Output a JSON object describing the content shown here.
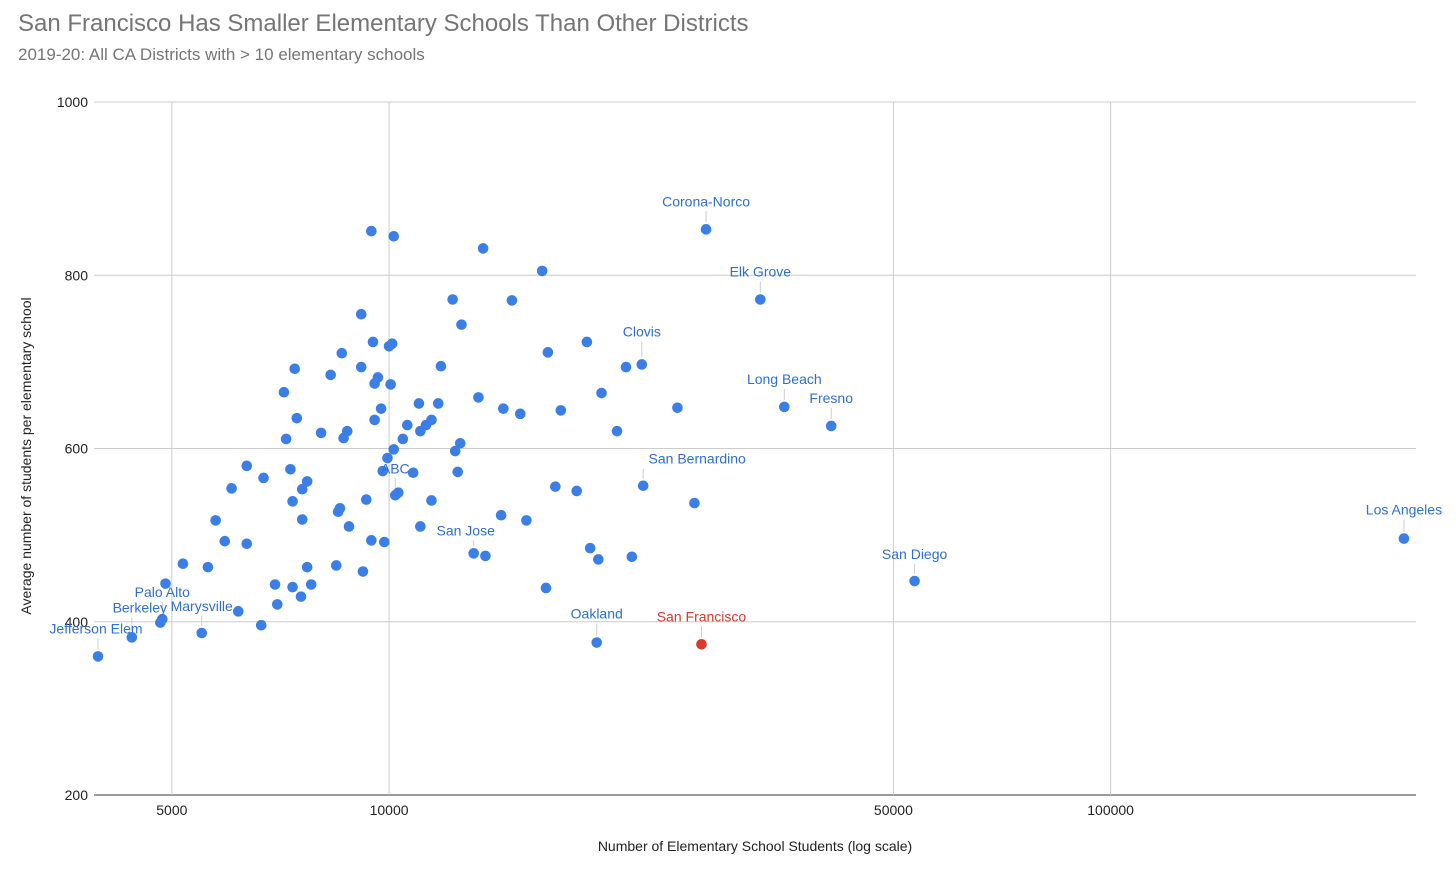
{
  "chart_data": {
    "type": "scatter",
    "title": "San Francisco Has Smaller Elementary Schools Than Other Districts",
    "subtitle": "2019-20: All CA Districts with > 10 elementary schools",
    "xlabel": "Number of Elementary School Students (log scale)",
    "ylabel": "Average number of students per elementary school",
    "x_scale": "log",
    "xlim": [
      3900,
      265000
    ],
    "ylim": [
      200,
      1000
    ],
    "x_ticks": [
      5000,
      10000,
      50000,
      100000
    ],
    "x_tick_labels": [
      "5000",
      "10000",
      "50000",
      "100000"
    ],
    "y_ticks": [
      200,
      400,
      600,
      800,
      1000
    ],
    "y_tick_labels": [
      "200",
      "400",
      "600",
      "800",
      "1000"
    ],
    "x_gridlines": [
      5000,
      10000,
      50000,
      100000
    ],
    "grid": true,
    "colors": {
      "default": "#3b7ee6",
      "highlight": "#db3b2e",
      "label": "#2f6fd0",
      "highlight_label": "#d33a2c",
      "grid": "#cccccc",
      "title": "#757575"
    },
    "points": [
      {
        "x": 255000,
        "y": 496,
        "label": "Los Angeles"
      },
      {
        "x": 53500,
        "y": 447,
        "label": "San Diego"
      },
      {
        "x": 27500,
        "y": 853,
        "label": "Corona-Norco"
      },
      {
        "x": 32700,
        "y": 772,
        "label": "Elk Grove"
      },
      {
        "x": 35300,
        "y": 648,
        "label": "Long Beach"
      },
      {
        "x": 41000,
        "y": 626,
        "label": "Fresno"
      },
      {
        "x": 22400,
        "y": 697,
        "label": "Clovis"
      },
      {
        "x": 22500,
        "y": 557,
        "label": "San Bernardino"
      },
      {
        "x": 27100,
        "y": 374,
        "label": "San Francisco",
        "highlight": true
      },
      {
        "x": 19400,
        "y": 376,
        "label": "Oakland"
      },
      {
        "x": 13100,
        "y": 479,
        "label": "San Jose"
      },
      {
        "x": 10200,
        "y": 546,
        "label": "ABC"
      },
      {
        "x": 5500,
        "y": 387,
        "label": "Marysville"
      },
      {
        "x": 4850,
        "y": 403,
        "label": "Palo Alto"
      },
      {
        "x": 4400,
        "y": 382,
        "label": "Berkeley"
      },
      {
        "x": 3950,
        "y": 360,
        "label": "Jefferson Elem"
      },
      {
        "x": 9450,
        "y": 851
      },
      {
        "x": 10150,
        "y": 845
      },
      {
        "x": 13500,
        "y": 831
      },
      {
        "x": 16300,
        "y": 805
      },
      {
        "x": 12250,
        "y": 772
      },
      {
        "x": 14800,
        "y": 771
      },
      {
        "x": 9150,
        "y": 755
      },
      {
        "x": 12600,
        "y": 743
      },
      {
        "x": 10100,
        "y": 721
      },
      {
        "x": 10000,
        "y": 718
      },
      {
        "x": 9500,
        "y": 723
      },
      {
        "x": 18800,
        "y": 723
      },
      {
        "x": 8600,
        "y": 710
      },
      {
        "x": 16600,
        "y": 711
      },
      {
        "x": 7400,
        "y": 692
      },
      {
        "x": 9150,
        "y": 694
      },
      {
        "x": 11800,
        "y": 695
      },
      {
        "x": 21300,
        "y": 694
      },
      {
        "x": 8300,
        "y": 685
      },
      {
        "x": 9650,
        "y": 682
      },
      {
        "x": 9550,
        "y": 675
      },
      {
        "x": 10050,
        "y": 674
      },
      {
        "x": 7150,
        "y": 665
      },
      {
        "x": 19700,
        "y": 664
      },
      {
        "x": 13300,
        "y": 659
      },
      {
        "x": 11000,
        "y": 652
      },
      {
        "x": 11700,
        "y": 652
      },
      {
        "x": 9750,
        "y": 646
      },
      {
        "x": 14400,
        "y": 646
      },
      {
        "x": 25100,
        "y": 647
      },
      {
        "x": 15200,
        "y": 640
      },
      {
        "x": 17300,
        "y": 644
      },
      {
        "x": 7450,
        "y": 635
      },
      {
        "x": 9550,
        "y": 633
      },
      {
        "x": 11450,
        "y": 633
      },
      {
        "x": 11250,
        "y": 627
      },
      {
        "x": 10600,
        "y": 627
      },
      {
        "x": 11050,
        "y": 620
      },
      {
        "x": 8750,
        "y": 620
      },
      {
        "x": 8050,
        "y": 618
      },
      {
        "x": 20700,
        "y": 620
      },
      {
        "x": 8650,
        "y": 612
      },
      {
        "x": 7200,
        "y": 611
      },
      {
        "x": 10450,
        "y": 611
      },
      {
        "x": 12550,
        "y": 606
      },
      {
        "x": 10150,
        "y": 599
      },
      {
        "x": 12350,
        "y": 597
      },
      {
        "x": 9950,
        "y": 589
      },
      {
        "x": 6350,
        "y": 580
      },
      {
        "x": 7300,
        "y": 576
      },
      {
        "x": 9800,
        "y": 574
      },
      {
        "x": 10800,
        "y": 572
      },
      {
        "x": 12450,
        "y": 573
      },
      {
        "x": 6700,
        "y": 566
      },
      {
        "x": 7700,
        "y": 562
      },
      {
        "x": 7580,
        "y": 553
      },
      {
        "x": 6050,
        "y": 554
      },
      {
        "x": 17000,
        "y": 556
      },
      {
        "x": 18200,
        "y": 551
      },
      {
        "x": 10300,
        "y": 549
      },
      {
        "x": 7350,
        "y": 539
      },
      {
        "x": 9300,
        "y": 541
      },
      {
        "x": 11450,
        "y": 540
      },
      {
        "x": 26500,
        "y": 537
      },
      {
        "x": 8550,
        "y": 531
      },
      {
        "x": 8500,
        "y": 527
      },
      {
        "x": 14300,
        "y": 523
      },
      {
        "x": 7580,
        "y": 518
      },
      {
        "x": 5750,
        "y": 517
      },
      {
        "x": 15500,
        "y": 517
      },
      {
        "x": 8800,
        "y": 510
      },
      {
        "x": 11050,
        "y": 510
      },
      {
        "x": 9450,
        "y": 494
      },
      {
        "x": 9850,
        "y": 492
      },
      {
        "x": 5920,
        "y": 493
      },
      {
        "x": 6350,
        "y": 490
      },
      {
        "x": 19000,
        "y": 485
      },
      {
        "x": 13600,
        "y": 476
      },
      {
        "x": 21700,
        "y": 475
      },
      {
        "x": 19500,
        "y": 472
      },
      {
        "x": 5180,
        "y": 467
      },
      {
        "x": 5610,
        "y": 463
      },
      {
        "x": 8450,
        "y": 465
      },
      {
        "x": 7700,
        "y": 463
      },
      {
        "x": 9200,
        "y": 458
      },
      {
        "x": 4900,
        "y": 444
      },
      {
        "x": 6950,
        "y": 443
      },
      {
        "x": 7800,
        "y": 443
      },
      {
        "x": 7350,
        "y": 440
      },
      {
        "x": 16500,
        "y": 439
      },
      {
        "x": 7550,
        "y": 429
      },
      {
        "x": 7000,
        "y": 420
      },
      {
        "x": 6180,
        "y": 412
      },
      {
        "x": 4820,
        "y": 399
      },
      {
        "x": 6650,
        "y": 396
      }
    ]
  }
}
